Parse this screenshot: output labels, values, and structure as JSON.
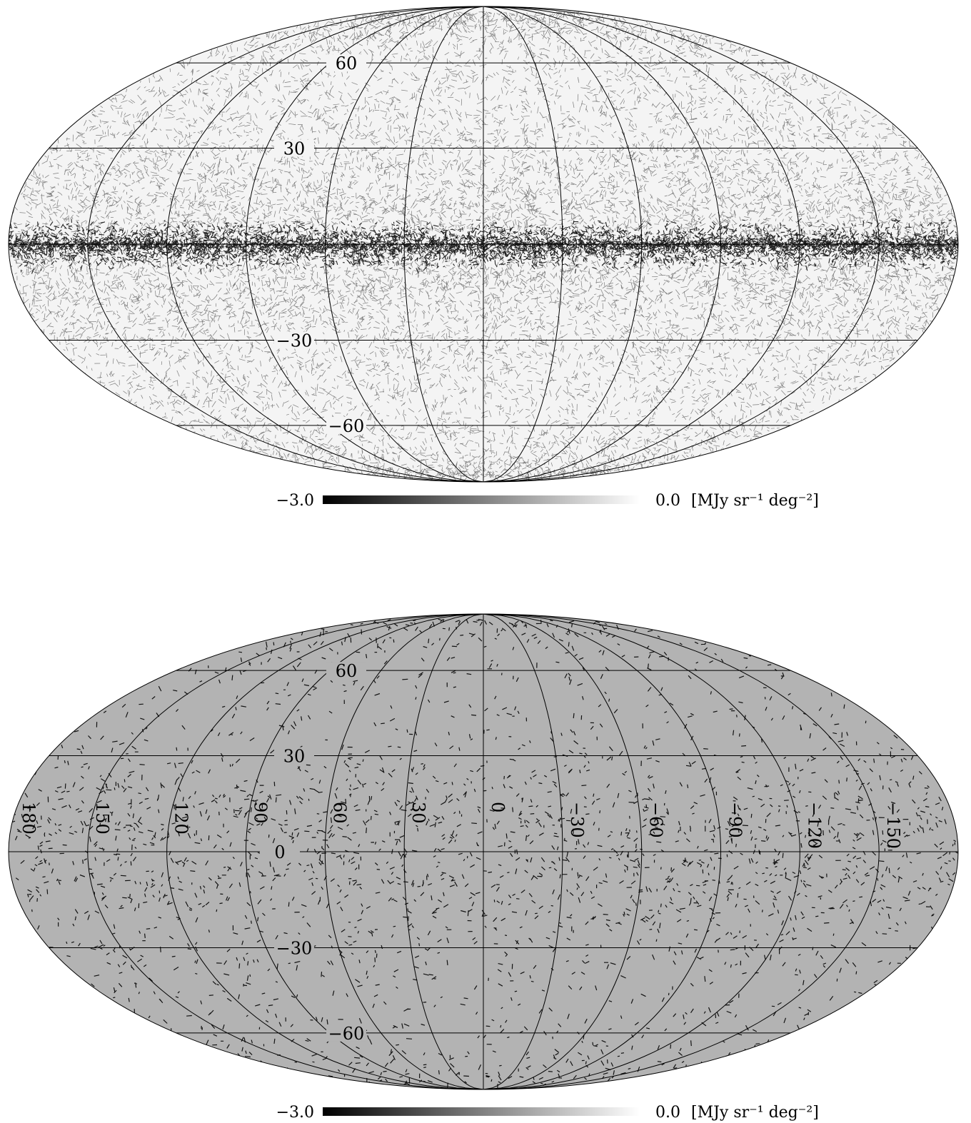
{
  "maps": [
    {
      "id": "top",
      "background": "#f4f4f4",
      "lat_labels": [
        "60",
        "30",
        "30",
        "60"
      ],
      "lat_label_values": [
        60,
        30,
        -30,
        -60
      ],
      "lon_labels": [],
      "colorbar": {
        "min_label": "−3.0",
        "max_label": "0.0",
        "unit_label": "[MJy sr⁻¹ deg⁻²]"
      }
    },
    {
      "id": "bottom",
      "background": "#b3b3b3",
      "lat_labels": [
        "60",
        "30",
        "0",
        "30",
        "60"
      ],
      "lat_label_values": [
        60,
        30,
        0,
        -30,
        -60
      ],
      "lon_labels": [
        "180",
        "150",
        "120",
        "90",
        "60",
        "30",
        "0",
        "30",
        "60",
        "90",
        "120",
        "150"
      ],
      "colorbar": {
        "min_label": "−3.0",
        "max_label": "0.0",
        "unit_label": "[MJy sr⁻¹ deg⁻²]"
      }
    }
  ]
}
